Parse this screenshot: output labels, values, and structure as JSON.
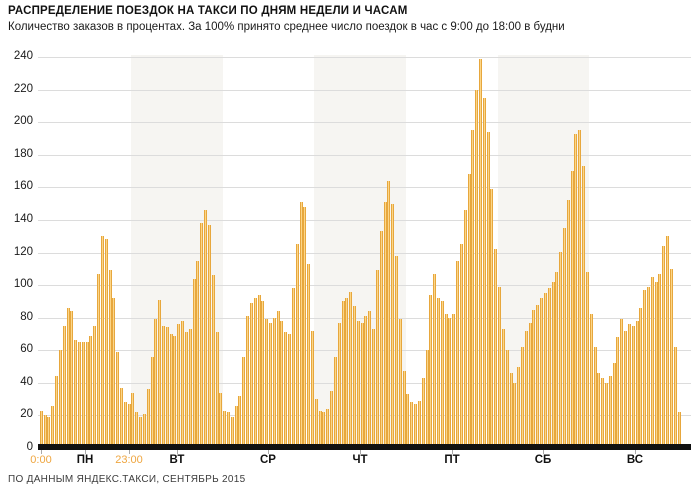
{
  "header": {
    "title": "РАСПРЕДЕЛЕНИЕ ПОЕЗДОК НА ТАКСИ ПО ДНЯМ НЕДЕЛИ И ЧАСАМ",
    "subtitle": "Количество заказов в процентах. За 100% принято среднее число поездок в час с 9:00 до 18:00 в будни"
  },
  "footer": {
    "source": "ПО ДАННЫМ ЯНДЕКС.ТАКСИ, СЕНТЯБРЬ 2015"
  },
  "chart_data": {
    "type": "bar",
    "title": "РАСПРЕДЕЛЕНИЕ ПОЕЗДОК НА ТАКСИ ПО ДНЯМ НЕДЕЛИ И ЧАСАМ",
    "subtitle": "Количество заказов в процентах. За 100% принято среднее число поездок в час с 9:00 до 18:00 в будни",
    "unit": "percent of weekday 9:00-18:00 hourly average",
    "ylim": [
      0,
      240
    ],
    "ytick_step": 20,
    "yticks": [
      0,
      20,
      40,
      60,
      80,
      100,
      120,
      140,
      160,
      180,
      200,
      220,
      240
    ],
    "grid": true,
    "hour_axis_labels": [
      "0:00",
      "23:00"
    ],
    "x_structure": "7 days × 24 hourly bars (hours 0..23)",
    "days": [
      {
        "label": "ПН",
        "shaded": false,
        "values": [
          23,
          20,
          19,
          26,
          44,
          60,
          75,
          86,
          84,
          66,
          65,
          65,
          65,
          69,
          75,
          107,
          130,
          128,
          109,
          92,
          59,
          37,
          28,
          27
        ]
      },
      {
        "label": "ВТ",
        "shaded": true,
        "values": [
          34,
          22,
          19,
          21,
          36,
          56,
          79,
          91,
          75,
          74,
          70,
          69,
          76,
          78,
          71,
          73,
          104,
          115,
          138,
          146,
          137,
          106,
          71,
          34
        ]
      },
      {
        "label": "СР",
        "shaded": false,
        "values": [
          23,
          22,
          19,
          26,
          32,
          56,
          81,
          89,
          92,
          94,
          90,
          79,
          77,
          80,
          84,
          78,
          71,
          70,
          98,
          125,
          151,
          148,
          113,
          72
        ]
      },
      {
        "label": "ЧТ",
        "shaded": true,
        "values": [
          30,
          23,
          22,
          24,
          35,
          56,
          77,
          90,
          92,
          96,
          87,
          78,
          77,
          81,
          84,
          73,
          109,
          133,
          151,
          164,
          150,
          118,
          79,
          47
        ]
      },
      {
        "label": "ПТ",
        "shaded": false,
        "values": [
          33,
          28,
          27,
          29,
          43,
          60,
          94,
          107,
          92,
          90,
          82,
          80,
          82,
          115,
          125,
          146,
          168,
          195,
          220,
          239,
          215,
          194,
          159,
          122
        ]
      },
      {
        "label": "СБ",
        "shaded": true,
        "values": [
          99,
          73,
          60,
          46,
          40,
          50,
          62,
          72,
          77,
          85,
          88,
          92,
          95,
          98,
          102,
          108,
          120,
          135,
          152,
          170,
          193,
          195,
          173,
          108
        ]
      },
      {
        "label": "ВС",
        "shaded": false,
        "values": [
          82,
          62,
          46,
          43,
          40,
          44,
          52,
          68,
          79,
          72,
          76,
          75,
          78,
          86,
          97,
          99,
          105,
          102,
          107,
          124,
          130,
          110,
          62,
          22
        ]
      }
    ],
    "colors": {
      "bar_fill": "#FCD688",
      "bar_edge": "#E7A73D",
      "day_band": "#F6F5F2",
      "gridline": "#DCDCDC",
      "axis": "#111111",
      "time_label": "#EFA640",
      "day_label": "#111111"
    },
    "legend": null
  }
}
